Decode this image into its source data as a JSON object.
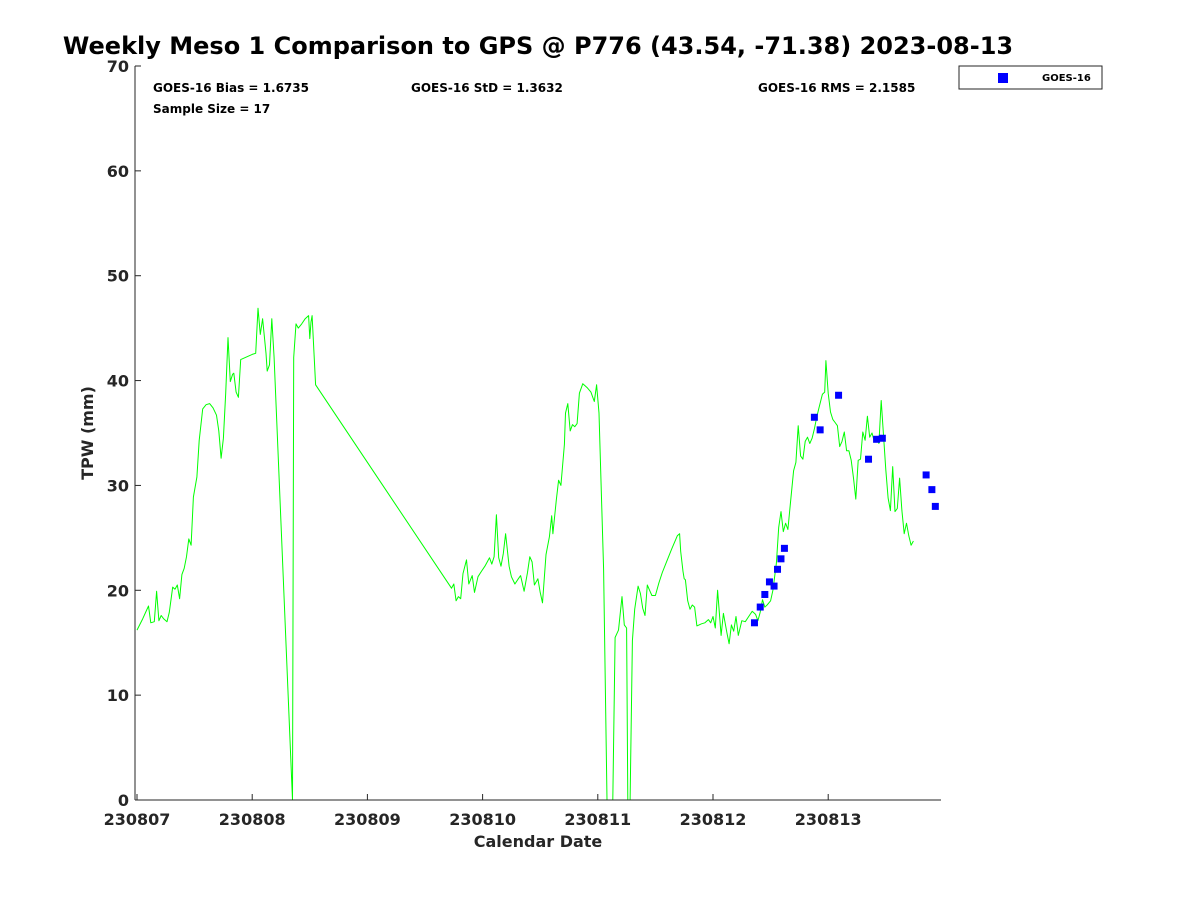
{
  "chart_data": {
    "type": "line",
    "title": "Weekly Meso 1 Comparison to GPS @ P776 (43.54, -71.38) 2023-08-13",
    "xlabel": "Calendar Date",
    "ylabel": "TPW (mm)",
    "xlim": [
      0,
      7
    ],
    "ylim": [
      0,
      70
    ],
    "x_ticks": [
      {
        "x": 0,
        "label": "230807"
      },
      {
        "x": 1,
        "label": "230808"
      },
      {
        "x": 2,
        "label": "230809"
      },
      {
        "x": 3,
        "label": "230810"
      },
      {
        "x": 4,
        "label": "230811"
      },
      {
        "x": 5,
        "label": "230812"
      },
      {
        "x": 6,
        "label": "230813"
      }
    ],
    "y_ticks": [
      0,
      10,
      20,
      30,
      40,
      50,
      60,
      70
    ],
    "grid": false,
    "legend": {
      "position": "top-right",
      "entries": [
        "GOES-16"
      ]
    },
    "stats": {
      "bias": "GOES-16 Bias = 1.6735",
      "std": "GOES-16 StD = 1.3632",
      "rms": "GOES-16 RMS = 2.1585",
      "n": "Sample Size = 17"
    },
    "series": [
      {
        "kind": "line",
        "color": "#00ff00",
        "points": [
          [
            0.0,
            16.2
          ],
          [
            0.05,
            17.3
          ],
          [
            0.1,
            18.5
          ],
          [
            0.12,
            16.9
          ],
          [
            0.15,
            17.0
          ],
          [
            0.17,
            19.9
          ],
          [
            0.19,
            17.1
          ],
          [
            0.21,
            17.6
          ],
          [
            0.23,
            17.3
          ],
          [
            0.26,
            17.0
          ],
          [
            0.28,
            17.9
          ],
          [
            0.31,
            20.3
          ],
          [
            0.33,
            20.1
          ],
          [
            0.35,
            20.5
          ],
          [
            0.37,
            19.2
          ],
          [
            0.39,
            21.5
          ],
          [
            0.41,
            22.1
          ],
          [
            0.43,
            23.2
          ],
          [
            0.45,
            24.9
          ],
          [
            0.47,
            24.3
          ],
          [
            0.49,
            28.9
          ],
          [
            0.52,
            30.8
          ],
          [
            0.54,
            34.3
          ],
          [
            0.57,
            37.3
          ],
          [
            0.6,
            37.7
          ],
          [
            0.63,
            37.8
          ],
          [
            0.66,
            37.4
          ],
          [
            0.69,
            36.7
          ],
          [
            0.71,
            35.2
          ],
          [
            0.73,
            32.6
          ],
          [
            0.75,
            34.5
          ],
          [
            0.77,
            38.8
          ],
          [
            0.79,
            44.1
          ],
          [
            0.81,
            39.9
          ],
          [
            0.83,
            40.6
          ],
          [
            0.84,
            40.7
          ],
          [
            0.86,
            38.9
          ],
          [
            0.88,
            38.4
          ],
          [
            0.9,
            42.0
          ],
          [
            1.0,
            42.5
          ],
          [
            1.03,
            42.6
          ],
          [
            1.05,
            46.9
          ],
          [
            1.07,
            44.4
          ],
          [
            1.09,
            45.9
          ],
          [
            1.12,
            42.6
          ],
          [
            1.13,
            40.9
          ],
          [
            1.15,
            41.5
          ],
          [
            1.17,
            45.9
          ],
          [
            1.19,
            42.2
          ],
          [
            1.35,
            0.0
          ],
          [
            1.36,
            42.2
          ],
          [
            1.38,
            45.4
          ],
          [
            1.4,
            45.0
          ],
          [
            1.43,
            45.4
          ],
          [
            1.46,
            45.9
          ],
          [
            1.49,
            46.2
          ],
          [
            1.5,
            44.0
          ],
          [
            1.51,
            45.6
          ],
          [
            1.52,
            46.2
          ],
          [
            1.55,
            39.6
          ],
          [
            2.73,
            20.2
          ],
          [
            2.75,
            20.6
          ],
          [
            2.77,
            19.0
          ],
          [
            2.79,
            19.4
          ],
          [
            2.81,
            19.2
          ],
          [
            2.83,
            21.6
          ],
          [
            2.86,
            22.9
          ],
          [
            2.88,
            20.6
          ],
          [
            2.91,
            21.4
          ],
          [
            2.93,
            19.8
          ],
          [
            2.96,
            21.3
          ],
          [
            2.99,
            21.8
          ],
          [
            3.02,
            22.3
          ],
          [
            3.06,
            23.1
          ],
          [
            3.08,
            22.5
          ],
          [
            3.1,
            23.2
          ],
          [
            3.12,
            27.2
          ],
          [
            3.14,
            23.1
          ],
          [
            3.16,
            22.3
          ],
          [
            3.18,
            23.5
          ],
          [
            3.2,
            25.4
          ],
          [
            3.23,
            22.3
          ],
          [
            3.25,
            21.3
          ],
          [
            3.28,
            20.6
          ],
          [
            3.31,
            21.1
          ],
          [
            3.33,
            21.4
          ],
          [
            3.36,
            19.9
          ],
          [
            3.39,
            21.7
          ],
          [
            3.41,
            23.2
          ],
          [
            3.43,
            22.7
          ],
          [
            3.45,
            20.5
          ],
          [
            3.48,
            21.1
          ],
          [
            3.5,
            19.8
          ],
          [
            3.52,
            18.8
          ],
          [
            3.55,
            23.4
          ],
          [
            3.58,
            25.1
          ],
          [
            3.6,
            27.1
          ],
          [
            3.61,
            25.4
          ],
          [
            3.64,
            28.6
          ],
          [
            3.66,
            30.5
          ],
          [
            3.68,
            30.0
          ],
          [
            3.71,
            33.9
          ],
          [
            3.72,
            36.9
          ],
          [
            3.74,
            37.8
          ],
          [
            3.76,
            35.2
          ],
          [
            3.78,
            35.8
          ],
          [
            3.8,
            35.6
          ],
          [
            3.82,
            35.9
          ],
          [
            3.84,
            38.8
          ],
          [
            3.87,
            39.7
          ],
          [
            3.91,
            39.3
          ],
          [
            3.94,
            38.9
          ],
          [
            3.97,
            38.0
          ],
          [
            3.99,
            39.6
          ],
          [
            4.01,
            36.9
          ],
          [
            4.05,
            22.0
          ],
          [
            4.08,
            0.0
          ],
          [
            4.13,
            0.0
          ],
          [
            4.15,
            15.5
          ],
          [
            4.18,
            16.2
          ],
          [
            4.21,
            19.4
          ],
          [
            4.23,
            16.7
          ],
          [
            4.25,
            16.4
          ],
          [
            4.26,
            0.0
          ],
          [
            4.28,
            0.0
          ],
          [
            4.3,
            15.2
          ],
          [
            4.32,
            18.2
          ],
          [
            4.35,
            20.4
          ],
          [
            4.37,
            19.7
          ],
          [
            4.39,
            18.3
          ],
          [
            4.41,
            17.6
          ],
          [
            4.43,
            20.5
          ],
          [
            4.45,
            20.0
          ],
          [
            4.47,
            19.5
          ],
          [
            4.5,
            19.5
          ],
          [
            4.53,
            20.7
          ],
          [
            4.56,
            21.7
          ],
          [
            4.6,
            22.8
          ],
          [
            4.64,
            23.9
          ],
          [
            4.69,
            25.2
          ],
          [
            4.71,
            25.4
          ],
          [
            4.72,
            23.7
          ],
          [
            4.74,
            21.8
          ],
          [
            4.75,
            21.1
          ],
          [
            4.76,
            21.0
          ],
          [
            4.78,
            19.0
          ],
          [
            4.8,
            18.2
          ],
          [
            4.82,
            18.6
          ],
          [
            4.84,
            18.4
          ],
          [
            4.86,
            16.6
          ],
          [
            4.9,
            16.8
          ],
          [
            4.93,
            16.9
          ],
          [
            4.96,
            17.2
          ],
          [
            4.98,
            16.9
          ],
          [
            5.0,
            17.5
          ],
          [
            5.02,
            16.4
          ],
          [
            5.04,
            20.0
          ],
          [
            5.07,
            15.7
          ],
          [
            5.09,
            17.8
          ],
          [
            5.12,
            16.0
          ],
          [
            5.14,
            14.9
          ],
          [
            5.16,
            16.7
          ],
          [
            5.18,
            16.1
          ],
          [
            5.2,
            17.5
          ],
          [
            5.22,
            15.7
          ],
          [
            5.25,
            17.1
          ],
          [
            5.28,
            17.0
          ],
          [
            5.31,
            17.5
          ],
          [
            5.34,
            18.0
          ],
          [
            5.37,
            17.7
          ],
          [
            5.39,
            17.1
          ],
          [
            5.41,
            17.9
          ],
          [
            5.43,
            19.1
          ],
          [
            5.45,
            18.4
          ],
          [
            5.47,
            18.6
          ],
          [
            5.5,
            19.0
          ],
          [
            5.52,
            20.0
          ],
          [
            5.55,
            22.6
          ],
          [
            5.57,
            26.0
          ],
          [
            5.59,
            27.5
          ],
          [
            5.61,
            25.6
          ],
          [
            5.63,
            26.4
          ],
          [
            5.65,
            25.8
          ],
          [
            5.67,
            28.1
          ],
          [
            5.7,
            31.4
          ],
          [
            5.72,
            32.2
          ],
          [
            5.74,
            35.7
          ],
          [
            5.76,
            32.8
          ],
          [
            5.78,
            32.5
          ],
          [
            5.8,
            34.2
          ],
          [
            5.82,
            34.6
          ],
          [
            5.84,
            34.0
          ],
          [
            5.86,
            34.5
          ],
          [
            5.88,
            35.4
          ],
          [
            5.9,
            36.5
          ],
          [
            5.92,
            37.4
          ],
          [
            5.95,
            38.7
          ],
          [
            5.97,
            38.9
          ],
          [
            5.98,
            41.9
          ],
          [
            6.0,
            38.8
          ],
          [
            6.02,
            37.0
          ],
          [
            6.04,
            36.3
          ],
          [
            6.06,
            36.0
          ],
          [
            6.08,
            35.7
          ],
          [
            6.1,
            33.7
          ],
          [
            6.12,
            34.2
          ],
          [
            6.14,
            35.1
          ],
          [
            6.16,
            33.3
          ],
          [
            6.18,
            33.3
          ],
          [
            6.2,
            32.4
          ],
          [
            6.22,
            30.7
          ],
          [
            6.24,
            28.7
          ],
          [
            6.26,
            32.4
          ],
          [
            6.28,
            32.5
          ],
          [
            6.3,
            35.1
          ],
          [
            6.32,
            34.3
          ],
          [
            6.34,
            36.6
          ],
          [
            6.36,
            34.6
          ],
          [
            6.38,
            35.0
          ],
          [
            6.4,
            34.2
          ],
          [
            6.42,
            34.6
          ],
          [
            6.44,
            34.0
          ],
          [
            6.46,
            38.1
          ],
          [
            6.48,
            34.8
          ],
          [
            6.5,
            31.5
          ],
          [
            6.52,
            28.8
          ],
          [
            6.54,
            27.6
          ],
          [
            6.56,
            31.8
          ],
          [
            6.58,
            27.5
          ],
          [
            6.6,
            27.8
          ],
          [
            6.62,
            30.7
          ],
          [
            6.64,
            27.6
          ],
          [
            6.66,
            25.4
          ],
          [
            6.68,
            26.4
          ],
          [
            6.7,
            25.2
          ],
          [
            6.72,
            24.3
          ],
          [
            6.74,
            24.7
          ]
        ]
      },
      {
        "name": "GOES-16",
        "kind": "scatter",
        "color": "#0000ff",
        "points": [
          [
            5.36,
            16.9
          ],
          [
            5.41,
            18.4
          ],
          [
            5.45,
            19.6
          ],
          [
            5.49,
            20.8
          ],
          [
            5.53,
            20.4
          ],
          [
            5.56,
            22.0
          ],
          [
            5.59,
            23.0
          ],
          [
            5.62,
            24.0
          ],
          [
            5.88,
            36.5
          ],
          [
            5.93,
            35.3
          ],
          [
            6.09,
            38.6
          ],
          [
            6.35,
            32.5
          ],
          [
            6.42,
            34.4
          ],
          [
            6.47,
            34.5
          ],
          [
            6.85,
            31.0
          ],
          [
            6.9,
            29.6
          ],
          [
            6.93,
            28.0
          ]
        ]
      }
    ]
  }
}
